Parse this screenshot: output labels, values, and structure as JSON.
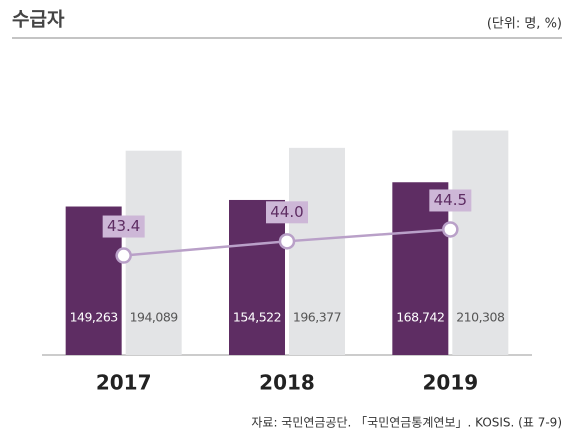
{
  "chart_data": {
    "type": "bar",
    "title": "수급자",
    "subtitle": "(단위: 명, %)",
    "source": "자료: 국민연금공단. 「국민연금통계연보」. KOSIS. (표 7-9)",
    "categories": [
      "2017",
      "2018",
      "2019"
    ],
    "series": [
      {
        "color": "#5e2d63",
        "values": [
          149263,
          154522,
          168742
        ],
        "value_labels": [
          "149,263",
          "154,522",
          "168,742"
        ]
      },
      {
        "color": "#e3e4e6",
        "values": [
          194089,
          196377,
          210308
        ],
        "value_labels": [
          "194,089",
          "196,377",
          "210,308"
        ]
      },
      {
        "type": "line",
        "axis": "y2",
        "color": "#b9a0c8",
        "values": [
          43.4,
          44.0,
          44.5
        ],
        "value_labels": [
          "43.4",
          "44.0",
          "44.5"
        ]
      }
    ],
    "ylim": [
      30000,
      283000
    ],
    "y2lim": [
      39.2,
      52.5
    ]
  }
}
